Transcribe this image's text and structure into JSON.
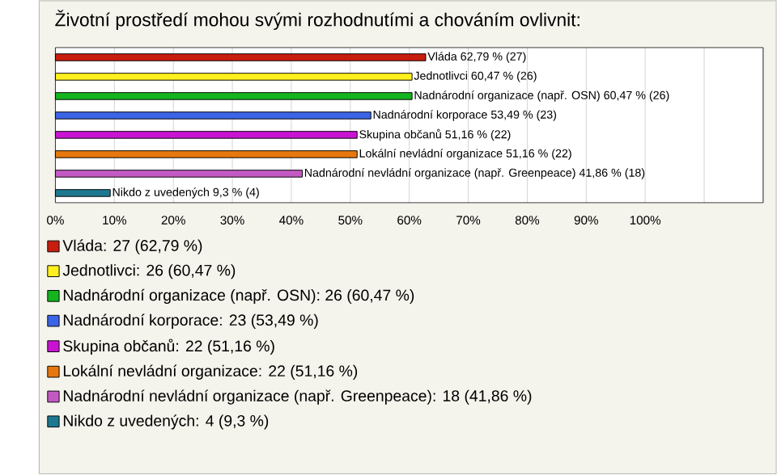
{
  "chart_data": {
    "type": "bar",
    "orientation": "horizontal",
    "title": "Životní prostředí mohou svými rozhodnutími a chováním ovlivnit:",
    "categories": [
      null,
      null,
      null,
      null,
      null,
      null,
      null,
      null
    ],
    "series": [
      {
        "name": "Vláda: 27 (62,79 %)",
        "color": "#c81e0f",
        "values": [
          62.79,
          null,
          null,
          null,
          null,
          null,
          null,
          null
        ],
        "value_labels": [
          "Vláda 62,79 % (27)",
          null,
          null,
          null,
          null,
          null,
          null,
          null
        ]
      },
      {
        "name": "Jednotlivci: 26 (60,47 %)",
        "color": "#fff01e",
        "values": [
          null,
          60.47,
          null,
          null,
          null,
          null,
          null,
          null
        ],
        "value_labels": [
          null,
          "Jednotlivci 60,47 % (26)",
          null,
          null,
          null,
          null,
          null,
          null
        ]
      },
      {
        "name": "Nadnárodní organizace (např. OSN): 26 (60,47 %)",
        "color": "#14b41e",
        "values": [
          null,
          null,
          60.47,
          null,
          null,
          null,
          null,
          null
        ],
        "value_labels": [
          null,
          null,
          "Nadnárodní organizace (např. OSN) 60,47 % (26)",
          null,
          null,
          null,
          null,
          null
        ]
      },
      {
        "name": "Nadnárodní korporace: 23 (53,49 %)",
        "color": "#3c64e6",
        "values": [
          null,
          null,
          null,
          53.49,
          null,
          null,
          null,
          null
        ],
        "value_labels": [
          null,
          null,
          null,
          "Nadnárodní korporace 53,49 % (23)",
          null,
          null,
          null,
          null
        ]
      },
      {
        "name": "Skupina občanů: 22 (51,16 %)",
        "color": "#c814d2",
        "values": [
          null,
          null,
          null,
          null,
          51.16,
          null,
          null,
          null
        ],
        "value_labels": [
          null,
          null,
          null,
          null,
          "Skupina občanů 51,16 % (22)",
          null,
          null,
          null
        ]
      },
      {
        "name": "Lokální nevládní organizace: 22 (51,16 %)",
        "color": "#e6780f",
        "values": [
          null,
          null,
          null,
          null,
          null,
          51.16,
          null,
          null
        ],
        "value_labels": [
          null,
          null,
          null,
          null,
          null,
          "Lokální nevládní organizace 51,16 % (22)",
          null,
          null
        ]
      },
      {
        "name": "Nadnárodní nevládní organizace (např. Greenpeace): 18 (41,86 %)",
        "color": "#c35ac3",
        "values": [
          null,
          null,
          null,
          null,
          null,
          null,
          41.86,
          null
        ],
        "value_labels": [
          null,
          null,
          null,
          null,
          null,
          null,
          "Nadnárodní nevládní organizace (např. Greenpeace) 41,86 % (18)",
          null
        ]
      },
      {
        "name": "Nikdo z uvedených: 4 (9,3 %)",
        "color": "#1e7891",
        "values": [
          null,
          null,
          null,
          null,
          null,
          null,
          null,
          9.3
        ],
        "value_labels": [
          null,
          null,
          null,
          null,
          null,
          null,
          null,
          "Nikdo z uvedených 9,3 % (4)"
        ]
      }
    ],
    "xlim": [
      0,
      120
    ],
    "xticks": [
      {
        "value": 0,
        "label": "0%"
      },
      {
        "value": 10,
        "label": "10%"
      },
      {
        "value": 20,
        "label": "20%"
      },
      {
        "value": 30,
        "label": "30%"
      },
      {
        "value": 40,
        "label": "40%"
      },
      {
        "value": 50,
        "label": "50%"
      },
      {
        "value": 60,
        "label": "60%"
      },
      {
        "value": 70,
        "label": "70%"
      },
      {
        "value": 80,
        "label": "80%"
      },
      {
        "value": 90,
        "label": "90%"
      },
      {
        "value": 100,
        "label": "100%"
      },
      {
        "value": 110,
        "label": null
      },
      {
        "value": 120,
        "label": null
      }
    ],
    "grid": "x",
    "tick_labels": "x",
    "legend": "bottom"
  }
}
